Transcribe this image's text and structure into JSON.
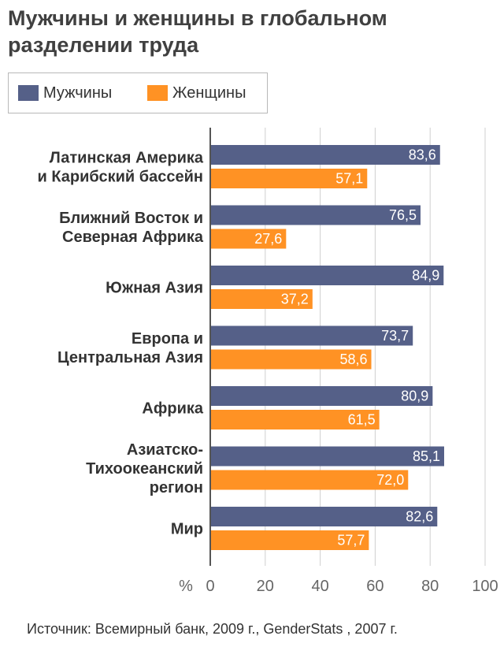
{
  "title": "Мужчины и женщины в глобальном разделении труда",
  "legend": [
    {
      "name": "Мужчины",
      "color": "#556088"
    },
    {
      "name": "Женщины",
      "color": "#ff9224"
    }
  ],
  "axis_unit": "%",
  "source": "Источник: Всемирный банк, 2009 г., GenderStats , 2007 г.",
  "chart_data": {
    "type": "bar",
    "orientation": "horizontal",
    "title": "Мужчины и женщины в глобальном разделении труда",
    "categories": [
      [
        "Латинская Америка",
        "и Карибский бассейн"
      ],
      [
        "Ближний Восток и",
        "Северная Африка"
      ],
      [
        "Южная Азия"
      ],
      [
        "Европа и",
        "Центральная Азия"
      ],
      [
        "Африка"
      ],
      [
        "Азиатско-",
        "Тихоокеанский",
        "регион"
      ],
      [
        "Мир"
      ]
    ],
    "series": [
      {
        "name": "Мужчины",
        "color": "#556088",
        "values": [
          83.6,
          76.5,
          84.9,
          73.7,
          80.9,
          85.1,
          82.6
        ],
        "labels": [
          "83,6",
          "76,5",
          "84,9",
          "73,7",
          "80,9",
          "85,1",
          "82,6"
        ]
      },
      {
        "name": "Женщины",
        "color": "#ff9224",
        "values": [
          57.1,
          27.6,
          37.2,
          58.6,
          61.5,
          72.0,
          57.7
        ],
        "labels": [
          "57,1",
          "27,6",
          "37,2",
          "58,6",
          "61,5",
          "72,0",
          "57,7"
        ]
      }
    ],
    "xlim": [
      0,
      100
    ],
    "xticks": [
      0,
      20,
      40,
      60,
      80,
      100
    ],
    "xunit": "%",
    "grid": true,
    "legend_position": "top-left"
  }
}
